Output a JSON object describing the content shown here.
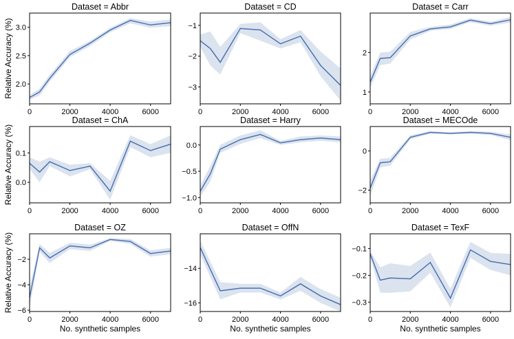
{
  "chart_data": [
    {
      "type": "line",
      "title": "Dataset = Abbr",
      "xlabel": "",
      "ylabel": "Relative Accuracy (%)",
      "xlim": [
        0,
        7000
      ],
      "ylim": [
        1.65,
        3.25
      ],
      "x": [
        0,
        500,
        1000,
        2000,
        3000,
        4000,
        5000,
        6000,
        7000
      ],
      "y": [
        1.76,
        1.86,
        2.1,
        2.52,
        2.72,
        2.95,
        3.12,
        3.04,
        3.08
      ],
      "lower": [
        1.72,
        1.8,
        2.04,
        2.47,
        2.67,
        2.91,
        3.07,
        2.99,
        3.02
      ],
      "upper": [
        1.8,
        1.92,
        2.16,
        2.58,
        2.76,
        2.99,
        3.16,
        3.1,
        3.14
      ],
      "xticks": [
        0,
        2000,
        4000,
        6000
      ],
      "xtick_labels": [
        "0",
        "2000",
        "4000",
        "6000"
      ],
      "yticks": [
        2.0,
        2.5,
        3.0
      ],
      "ytick_labels": [
        "2.0",
        "2.5",
        "3.0"
      ]
    },
    {
      "type": "line",
      "title": "Dataset = CD",
      "xlabel": "",
      "ylabel": "",
      "xlim": [
        0,
        7000
      ],
      "ylim": [
        -3.55,
        -0.6
      ],
      "x": [
        0,
        500,
        1000,
        2000,
        3000,
        4000,
        5000,
        6000,
        7000
      ],
      "y": [
        -1.5,
        -1.75,
        -2.2,
        -1.1,
        -1.15,
        -1.6,
        -1.35,
        -2.3,
        -2.95
      ],
      "lower": [
        -1.7,
        -2.3,
        -2.6,
        -1.25,
        -1.5,
        -1.75,
        -1.55,
        -2.65,
        -3.45
      ],
      "upper": [
        -1.3,
        -1.2,
        -1.7,
        -0.95,
        -0.9,
        -1.45,
        -1.15,
        -1.85,
        -2.4
      ],
      "xticks": [
        0,
        2000,
        4000,
        6000
      ],
      "xtick_labels": [
        "0",
        "2000",
        "4000",
        "6000"
      ],
      "yticks": [
        -1,
        -2,
        -3
      ],
      "ytick_labels": [
        "−1",
        "−2",
        "−3"
      ]
    },
    {
      "type": "line",
      "title": "Dataset = Carr",
      "xlabel": "",
      "ylabel": "",
      "xlim": [
        0,
        7000
      ],
      "ylim": [
        0.7,
        3.0
      ],
      "x": [
        0,
        500,
        1000,
        2000,
        3000,
        4000,
        5000,
        6000,
        7000
      ],
      "y": [
        1.25,
        1.85,
        1.87,
        2.42,
        2.6,
        2.65,
        2.82,
        2.73,
        2.83
      ],
      "lower": [
        1.1,
        1.68,
        1.72,
        2.33,
        2.55,
        2.6,
        2.77,
        2.68,
        2.76
      ],
      "upper": [
        1.4,
        2.0,
        2.02,
        2.52,
        2.65,
        2.71,
        2.87,
        2.78,
        2.9
      ],
      "xticks": [
        0,
        2000,
        4000,
        6000
      ],
      "xtick_labels": [
        "0",
        "2000",
        "4000",
        "6000"
      ],
      "yticks": [
        1,
        2
      ],
      "ytick_labels": [
        "1",
        "2"
      ]
    },
    {
      "type": "line",
      "title": "Dataset = ChA",
      "xlabel": "",
      "ylabel": "Relative Accuracy (%)",
      "xlim": [
        0,
        7000
      ],
      "ylim": [
        -0.07,
        0.19
      ],
      "x": [
        0,
        500,
        1000,
        2000,
        3000,
        4000,
        5000,
        6000,
        7000
      ],
      "y": [
        0.065,
        0.035,
        0.07,
        0.04,
        0.055,
        -0.03,
        0.14,
        0.108,
        0.13
      ],
      "lower": [
        0.045,
        0.0,
        0.055,
        0.02,
        0.045,
        -0.06,
        0.12,
        0.085,
        0.1
      ],
      "upper": [
        0.085,
        0.07,
        0.085,
        0.06,
        0.065,
        0.005,
        0.16,
        0.13,
        0.16
      ],
      "xticks": [
        0,
        2000,
        4000,
        6000
      ],
      "xtick_labels": [
        "0",
        "2000",
        "4000",
        "6000"
      ],
      "yticks": [
        0.0,
        0.1
      ],
      "ytick_labels": [
        "0.0",
        "0.1"
      ]
    },
    {
      "type": "line",
      "title": "Dataset = Harry",
      "xlabel": "",
      "ylabel": "",
      "xlim": [
        0,
        7000
      ],
      "ylim": [
        -1.1,
        0.35
      ],
      "x": [
        0,
        500,
        1000,
        2000,
        3000,
        4000,
        5000,
        6000,
        7000
      ],
      "y": [
        -0.88,
        -0.55,
        -0.08,
        0.1,
        0.2,
        0.04,
        0.1,
        0.13,
        0.1
      ],
      "lower": [
        -0.98,
        -0.7,
        -0.15,
        0.02,
        0.13,
        0.0,
        0.05,
        0.08,
        0.05
      ],
      "upper": [
        -0.78,
        -0.4,
        0.0,
        0.18,
        0.28,
        0.08,
        0.16,
        0.18,
        0.16
      ],
      "xticks": [
        0,
        2000,
        4000,
        6000
      ],
      "xtick_labels": [
        "0",
        "2000",
        "4000",
        "6000"
      ],
      "yticks": [
        0.0,
        -0.5,
        -1.0
      ],
      "ytick_labels": [
        "0.0",
        "−0.5",
        "−1.0"
      ]
    },
    {
      "type": "line",
      "title": "Dataset = MECOde",
      "xlabel": "",
      "ylabel": "",
      "xlim": [
        0,
        7000
      ],
      "ylim": [
        -2.65,
        1.25
      ],
      "x": [
        0,
        500,
        1000,
        2000,
        3000,
        4000,
        5000,
        6000,
        7000
      ],
      "y": [
        -1.9,
        -0.6,
        -0.55,
        0.7,
        0.95,
        0.9,
        0.95,
        0.9,
        0.7
      ],
      "lower": [
        -2.3,
        -0.85,
        -0.75,
        0.6,
        0.88,
        0.85,
        0.87,
        0.82,
        0.55
      ],
      "upper": [
        -1.5,
        -0.4,
        -0.35,
        0.8,
        1.02,
        0.95,
        1.02,
        0.98,
        0.85
      ],
      "xticks": [
        0,
        2000,
        4000,
        6000
      ],
      "xtick_labels": [
        "0",
        "2000",
        "4000",
        "6000"
      ],
      "yticks": [
        0,
        -2
      ],
      "ytick_labels": [
        "0",
        "−2"
      ]
    },
    {
      "type": "line",
      "title": "Dataset = OZ",
      "xlabel": "No. synthetic samples",
      "ylabel": "Relative Accuracy (%)",
      "xlim": [
        0,
        7000
      ],
      "ylim": [
        -6.1,
        0.0
      ],
      "x": [
        0,
        500,
        1000,
        2000,
        3000,
        4000,
        5000,
        6000,
        7000
      ],
      "y": [
        -5.0,
        -1.1,
        -1.9,
        -0.95,
        -1.1,
        -0.45,
        -0.6,
        -1.55,
        -1.35
      ],
      "lower": [
        -5.8,
        -1.4,
        -2.3,
        -1.2,
        -1.35,
        -0.55,
        -0.8,
        -1.8,
        -1.6
      ],
      "upper": [
        -4.2,
        -0.8,
        -1.5,
        -0.7,
        -0.85,
        -0.35,
        -0.4,
        -1.3,
        -1.1
      ],
      "xticks": [
        0,
        2000,
        4000,
        6000
      ],
      "xtick_labels": [
        "0",
        "2000",
        "4000",
        "6000"
      ],
      "yticks": [
        -2,
        -4,
        -6
      ],
      "ytick_labels": [
        "−2",
        "−4",
        "−6"
      ]
    },
    {
      "type": "line",
      "title": "Dataset = OffN",
      "xlabel": "No. synthetic samples",
      "ylabel": "",
      "xlim": [
        0,
        7000
      ],
      "ylim": [
        -16.5,
        -12.0
      ],
      "x": [
        0,
        1000,
        2000,
        3000,
        4000,
        5000,
        6000,
        7000
      ],
      "y": [
        -12.8,
        -15.3,
        -15.15,
        -15.15,
        -15.6,
        -14.9,
        -15.6,
        -16.1
      ],
      "lower": [
        -13.2,
        -15.8,
        -15.4,
        -15.4,
        -15.8,
        -15.3,
        -16.0,
        -16.5
      ],
      "upper": [
        -12.4,
        -14.8,
        -14.9,
        -14.9,
        -15.4,
        -14.5,
        -15.2,
        -15.7
      ],
      "xticks": [
        0,
        2000,
        4000,
        6000
      ],
      "xtick_labels": [
        "0",
        "2000",
        "4000",
        "6000"
      ],
      "yticks": [
        -14,
        -16
      ],
      "ytick_labels": [
        "−14",
        "−16"
      ]
    },
    {
      "type": "line",
      "title": "Dataset = TexF",
      "xlabel": "No. synthetic samples",
      "ylabel": "",
      "xlim": [
        0,
        7000
      ],
      "ylim": [
        -0.335,
        -0.045
      ],
      "x": [
        0,
        500,
        1000,
        2000,
        3000,
        4000,
        5000,
        6000,
        7000
      ],
      "y": [
        -0.12,
        -0.218,
        -0.21,
        -0.213,
        -0.152,
        -0.285,
        -0.105,
        -0.148,
        -0.16
      ],
      "lower": [
        -0.13,
        -0.265,
        -0.265,
        -0.26,
        -0.19,
        -0.32,
        -0.135,
        -0.18,
        -0.2
      ],
      "upper": [
        -0.11,
        -0.17,
        -0.155,
        -0.165,
        -0.115,
        -0.25,
        -0.075,
        -0.116,
        -0.12
      ],
      "xticks": [
        0,
        2000,
        4000,
        6000
      ],
      "xtick_labels": [
        "0",
        "2000",
        "4000",
        "6000"
      ],
      "yticks": [
        -0.1,
        -0.2,
        -0.3
      ],
      "ytick_labels": [
        "−0.1",
        "−0.2",
        "−0.3"
      ]
    }
  ]
}
